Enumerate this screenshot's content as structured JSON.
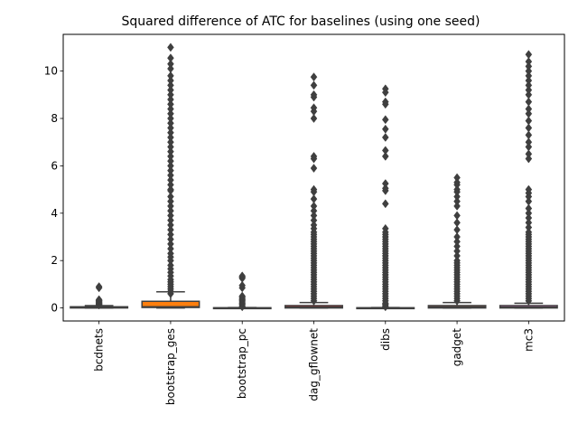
{
  "chart_data": {
    "type": "boxplot",
    "title": "Squared difference of ATC for baselines (using one seed)",
    "xlabel": "",
    "ylabel": "",
    "ylim": [
      -0.55,
      11.55
    ],
    "yticks": [
      0,
      2,
      4,
      6,
      8,
      10
    ],
    "ytick_labels": [
      "0",
      "2",
      "4",
      "6",
      "8",
      "10"
    ],
    "grid": false,
    "legend": "none",
    "categories": [
      "bcdnets",
      "bootstrap_ges",
      "bootstrap_pc",
      "dag_gflownet",
      "dibs",
      "gadget",
      "mc3"
    ],
    "boxes": [
      {
        "category": "bcdnets",
        "color": "#1f77b4",
        "q1": 0.0,
        "median": 0.02,
        "q3": 0.05,
        "whisker_low": 0.0,
        "whisker_high": 0.1,
        "outliers": [
          0.12,
          0.14,
          0.16,
          0.18,
          0.2,
          0.22,
          0.25,
          0.28,
          0.3,
          0.32,
          0.35,
          0.85,
          0.9
        ]
      },
      {
        "category": "bootstrap_ges",
        "color": "#ff7f0e",
        "q1": 0.02,
        "median": 0.05,
        "q3": 0.28,
        "whisker_low": 0.0,
        "whisker_high": 0.68,
        "outliers": [
          0.6,
          0.7,
          0.8,
          0.9,
          1.0,
          1.1,
          1.2,
          1.35,
          1.5,
          1.65,
          1.8,
          2.0,
          2.15,
          2.3,
          2.5,
          2.7,
          2.9,
          3.1,
          3.3,
          3.5,
          3.7,
          3.9,
          4.1,
          4.3,
          4.5,
          4.7,
          4.95,
          5.0,
          5.2,
          5.4,
          5.6,
          5.8,
          6.0,
          6.2,
          6.4,
          6.6,
          6.8,
          7.0,
          7.2,
          7.4,
          7.6,
          7.8,
          8.0,
          8.2,
          8.4,
          8.6,
          8.8,
          9.0,
          9.2,
          9.4,
          9.6,
          9.8,
          10.1,
          10.3,
          10.55,
          11.0
        ]
      },
      {
        "category": "bootstrap_pc",
        "color": "#2ca02c",
        "q1": 0.0,
        "median": 0.0,
        "q3": 0.01,
        "whisker_low": 0.0,
        "whisker_high": 0.02,
        "outliers": [
          0.05,
          0.1,
          0.15,
          0.2,
          0.25,
          0.3,
          0.35,
          0.4,
          0.45,
          0.5,
          0.85,
          0.95,
          1.25,
          1.3,
          1.35
        ]
      },
      {
        "category": "dag_gflownet",
        "color": "#d62728",
        "q1": 0.0,
        "median": 0.03,
        "q3": 0.1,
        "whisker_low": 0.0,
        "whisker_high": 0.23,
        "outliers": [
          0.3,
          0.4,
          0.5,
          0.6,
          0.7,
          0.8,
          0.9,
          1.0,
          1.1,
          1.2,
          1.3,
          1.4,
          1.5,
          1.6,
          1.7,
          1.8,
          1.9,
          2.0,
          2.1,
          2.2,
          2.3,
          2.4,
          2.5,
          2.6,
          2.7,
          2.8,
          2.9,
          3.0,
          3.1,
          3.2,
          3.35,
          3.5,
          3.7,
          3.9,
          4.1,
          4.3,
          4.6,
          4.9,
          5.0,
          5.9,
          6.3,
          6.4,
          8.0,
          8.3,
          8.45,
          8.9,
          9.0,
          9.4,
          9.75
        ]
      },
      {
        "category": "dibs",
        "color": "#9467bd",
        "q1": 0.0,
        "median": 0.0,
        "q3": 0.01,
        "whisker_low": 0.0,
        "whisker_high": 0.02,
        "outliers": [
          0.05,
          0.1,
          0.15,
          0.2,
          0.3,
          0.4,
          0.5,
          0.6,
          0.7,
          0.8,
          0.9,
          1.0,
          1.1,
          1.2,
          1.3,
          1.4,
          1.5,
          1.6,
          1.7,
          1.8,
          1.9,
          2.0,
          2.1,
          2.2,
          2.3,
          2.4,
          2.5,
          2.6,
          2.7,
          2.8,
          2.9,
          3.0,
          3.1,
          3.2,
          3.35,
          4.4,
          4.95,
          5.05,
          5.25,
          6.4,
          6.65,
          7.2,
          7.55,
          7.95,
          8.6,
          8.7,
          9.1,
          9.25
        ]
      },
      {
        "category": "gadget",
        "color": "#8c564b",
        "q1": 0.0,
        "median": 0.03,
        "q3": 0.1,
        "whisker_low": 0.0,
        "whisker_high": 0.23,
        "outliers": [
          0.3,
          0.4,
          0.5,
          0.6,
          0.7,
          0.8,
          0.9,
          1.0,
          1.1,
          1.2,
          1.3,
          1.4,
          1.5,
          1.6,
          1.7,
          1.8,
          1.9,
          2.0,
          2.2,
          2.4,
          2.6,
          2.8,
          3.0,
          3.3,
          3.6,
          3.9,
          4.3,
          4.5,
          4.7,
          4.9,
          5.0,
          5.2,
          5.3,
          5.5
        ]
      },
      {
        "category": "mc3",
        "color": "#e377c2",
        "q1": 0.0,
        "median": 0.03,
        "q3": 0.1,
        "whisker_low": 0.0,
        "whisker_high": 0.2,
        "outliers": [
          0.3,
          0.4,
          0.5,
          0.6,
          0.7,
          0.8,
          0.9,
          1.0,
          1.1,
          1.2,
          1.3,
          1.4,
          1.5,
          1.6,
          1.7,
          1.8,
          1.9,
          2.0,
          2.1,
          2.2,
          2.3,
          2.4,
          2.5,
          2.6,
          2.7,
          2.8,
          2.9,
          3.0,
          3.1,
          3.2,
          3.4,
          3.6,
          3.8,
          4.0,
          4.2,
          4.5,
          4.7,
          4.85,
          5.0,
          6.3,
          6.5,
          6.8,
          7.0,
          7.3,
          7.6,
          7.9,
          8.2,
          8.4,
          8.7,
          9.0,
          9.2,
          9.4,
          9.6,
          9.8,
          10.0,
          10.2,
          10.4,
          10.7
        ]
      }
    ]
  }
}
